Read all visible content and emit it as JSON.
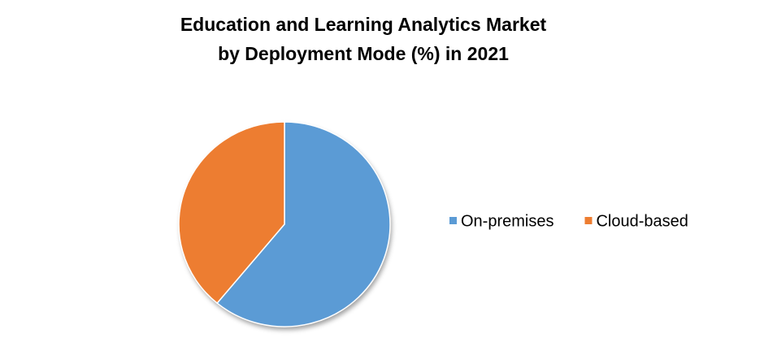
{
  "chart_data": {
    "type": "pie",
    "title": [
      "Education and Learning Analytics Market",
      "by Deployment Mode (%) in 2021"
    ],
    "categories": [
      "On-premises",
      "Cloud-based"
    ],
    "values": [
      61,
      39
    ],
    "colors": [
      "#5b9bd5",
      "#ed7d31"
    ],
    "legend": "right"
  }
}
